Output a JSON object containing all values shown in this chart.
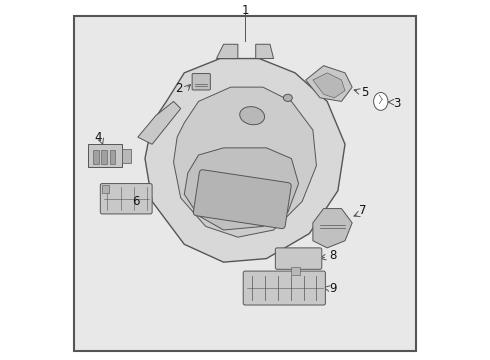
{
  "bg_color": "#e8e8e8",
  "border_color": "#555555",
  "line_color": "#555555",
  "label_color": "#111111",
  "fig_bg": "#ffffff"
}
